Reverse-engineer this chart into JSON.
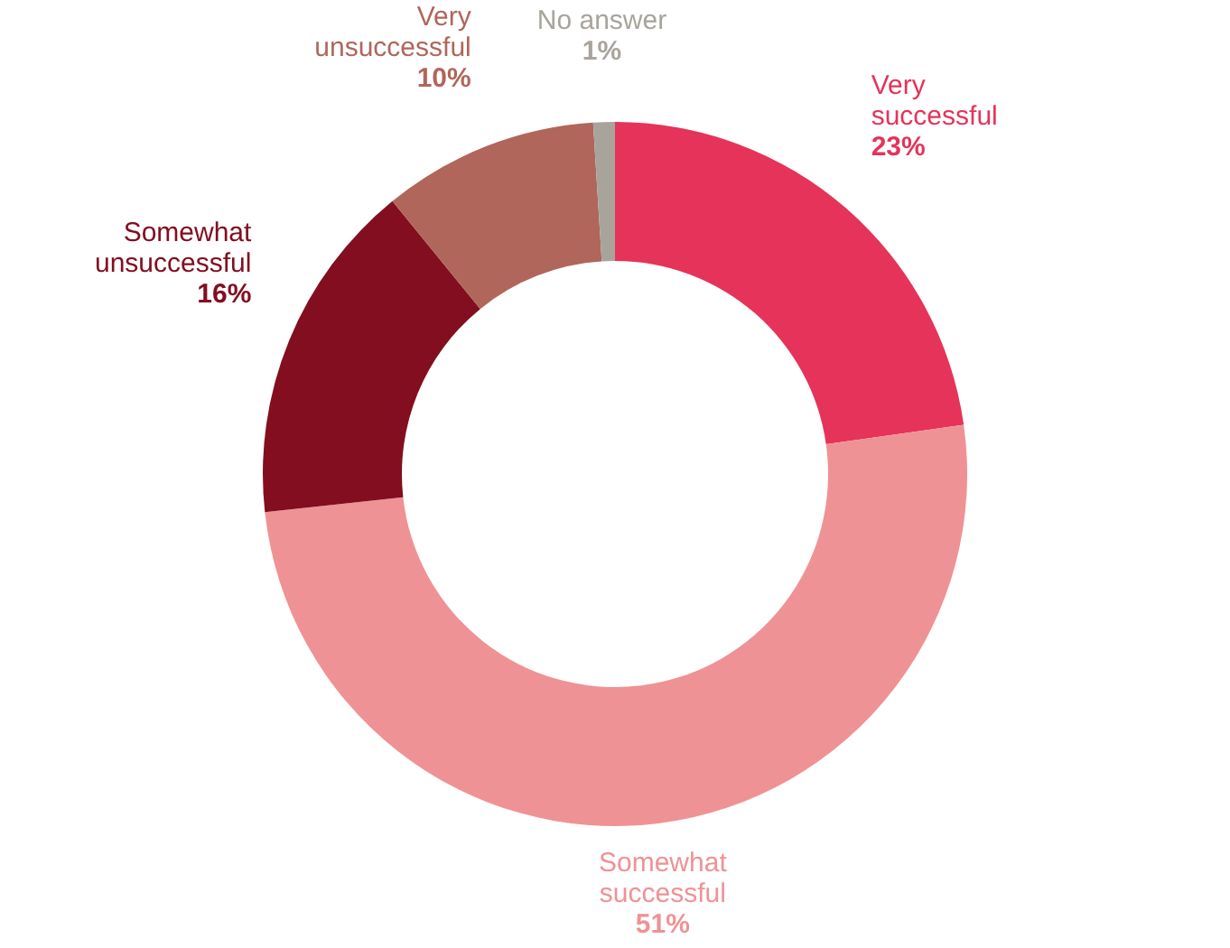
{
  "chart_data": {
    "type": "donut",
    "categories": [
      "Very successful",
      "Somewhat successful",
      "Somewhat unsuccessful",
      "Very unsuccessful",
      "No answer"
    ],
    "values": [
      23,
      51,
      16,
      10,
      1
    ],
    "value_labels": [
      "23%",
      "51%",
      "16%",
      "10%",
      "1%"
    ],
    "colors": [
      "#e5335a",
      "#ef9295",
      "#820e20",
      "#b0665a",
      "#a8a49c"
    ]
  }
}
